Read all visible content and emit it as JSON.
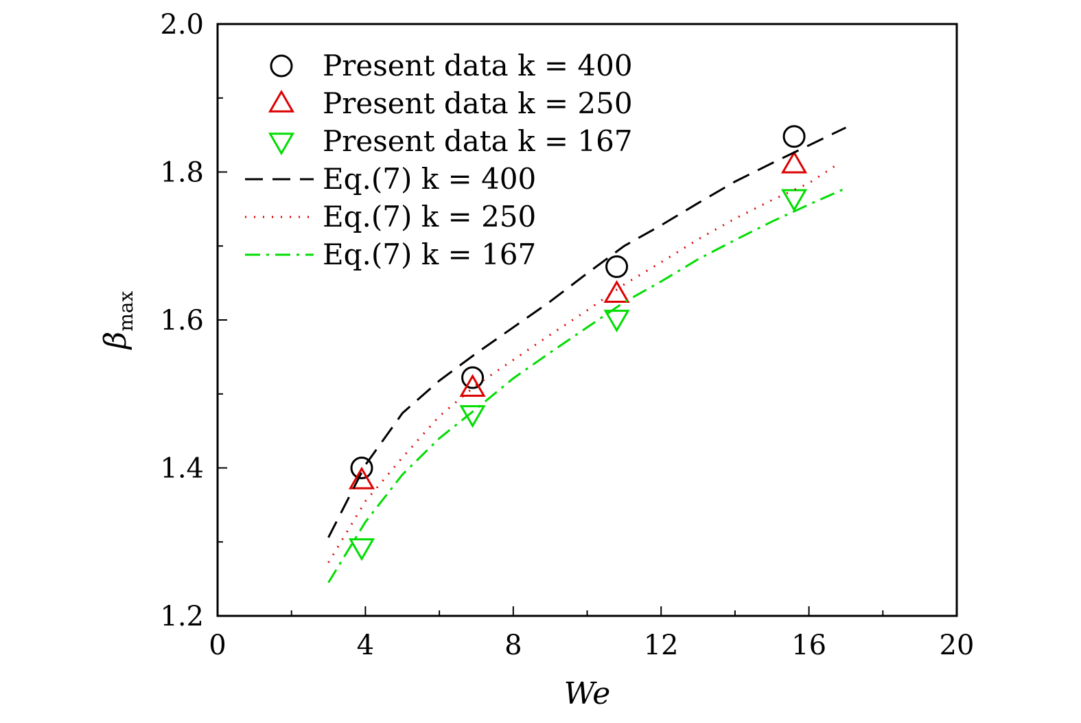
{
  "chart_data": {
    "type": "line",
    "xlabel": "We",
    "ylabel": "β_max",
    "xlim": [
      0,
      20
    ],
    "ylim": [
      1.2,
      2.0
    ],
    "x_ticks": [
      "0",
      "4",
      "8",
      "12",
      "16",
      "20"
    ],
    "y_ticks": [
      "1.2",
      "1.4",
      "1.6",
      "1.8",
      "2.0"
    ],
    "legend_position": "top-left",
    "grid": false,
    "series": [
      {
        "name": "Present data k = 400",
        "kind": "marker",
        "marker": "circle",
        "color": "#000000",
        "x": [
          3.9,
          6.9,
          10.8,
          15.6
        ],
        "y": [
          1.4,
          1.522,
          1.672,
          1.848
        ]
      },
      {
        "name": "Present data k = 250",
        "kind": "marker",
        "marker": "triangle-up",
        "color": "#dd0000",
        "x": [
          3.9,
          6.9,
          10.8,
          15.6
        ],
        "y": [
          1.383,
          1.508,
          1.635,
          1.81
        ]
      },
      {
        "name": "Present data k = 167",
        "kind": "marker",
        "marker": "triangle-down",
        "color": "#00dd00",
        "x": [
          3.9,
          6.9,
          10.8,
          15.6
        ],
        "y": [
          1.293,
          1.473,
          1.602,
          1.765
        ]
      },
      {
        "name": "Eq.(7) k = 400",
        "kind": "line",
        "dash": "dash",
        "color": "#000000",
        "x": [
          3.0,
          4.0,
          5.0,
          6.0,
          7.0,
          8.0,
          9.0,
          10.0,
          11.0,
          12.0,
          13.0,
          14.0,
          15.0,
          16.0,
          17.0
        ],
        "y": [
          1.306,
          1.404,
          1.474,
          1.518,
          1.555,
          1.59,
          1.625,
          1.663,
          1.7,
          1.728,
          1.758,
          1.787,
          1.812,
          1.836,
          1.86
        ]
      },
      {
        "name": "Eq.(7) k = 250",
        "kind": "line",
        "dash": "dot",
        "color": "#dd0000",
        "x": [
          3.0,
          4.0,
          5.0,
          6.0,
          7.0,
          8.0,
          9.0,
          10.0,
          11.0,
          12.0,
          13.0,
          14.0,
          15.0,
          16.0,
          16.7
        ],
        "y": [
          1.272,
          1.355,
          1.414,
          1.47,
          1.512,
          1.546,
          1.58,
          1.613,
          1.648,
          1.678,
          1.709,
          1.737,
          1.762,
          1.785,
          1.808
        ]
      },
      {
        "name": "Eq.(7) k = 167",
        "kind": "line",
        "dash": "dashdot",
        "color": "#00dd00",
        "x": [
          3.0,
          4.0,
          5.0,
          6.0,
          7.0,
          8.0,
          9.0,
          10.0,
          11.0,
          12.0,
          13.0,
          14.0,
          15.0,
          16.0,
          17.0
        ],
        "y": [
          1.245,
          1.327,
          1.391,
          1.44,
          1.48,
          1.521,
          1.556,
          1.59,
          1.624,
          1.652,
          1.682,
          1.708,
          1.733,
          1.756,
          1.778
        ]
      }
    ]
  }
}
